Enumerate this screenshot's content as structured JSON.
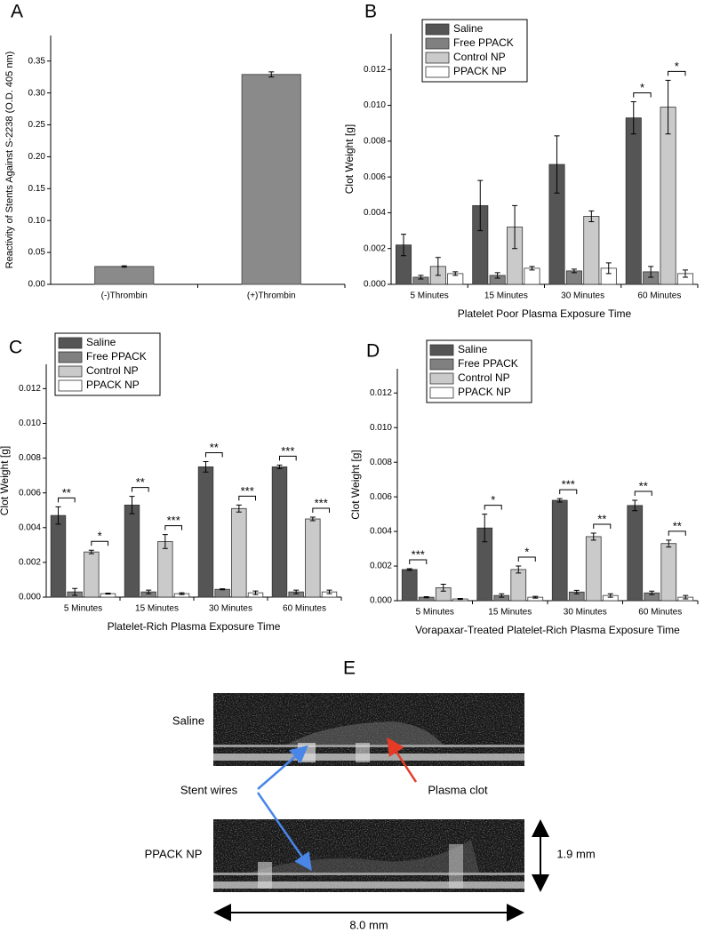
{
  "chart_data": [
    {
      "type": "bar",
      "panel_label": "A",
      "categories": [
        "(-)Thrombin",
        "(+)Thrombin"
      ],
      "values": [
        0.028,
        0.329
      ],
      "errors": [
        0.001,
        0.004
      ],
      "color": "#8a8a8a",
      "ylabel": "Reactivity of Stents Against S-2238 (O.D. 405 nm)",
      "ylim": [
        0,
        0.39
      ],
      "yticks": [
        {
          "value": 0,
          "label": "0.00"
        },
        0.05,
        {
          "value": 0.1,
          "label": "0.10"
        },
        0.15,
        {
          "value": 0.2,
          "label": "0.20"
        },
        0.25,
        {
          "value": 0.3,
          "label": "0.30"
        },
        0.35
      ]
    },
    {
      "type": "bar",
      "panel_label": "B",
      "legend": "top-left",
      "categories": [
        "5 Minutes",
        "15 Minutes",
        "30 Minutes",
        "60 Minutes"
      ],
      "xlabel": "Platelet Poor Plasma Exposure Time",
      "ylabel": "Clot Weight [g]",
      "ylim": [
        0,
        0.014
      ],
      "yticks": [
        {
          "value": 0,
          "label": "0.000"
        },
        0.002,
        0.004,
        0.006,
        0.008,
        {
          "value": 0.01,
          "label": "0.010"
        },
        0.012
      ],
      "series": [
        {
          "name": "Saline",
          "color": "#555555",
          "values": [
            0.0022,
            0.0044,
            0.0067,
            0.0093
          ],
          "errors": [
            0.0006,
            0.0014,
            0.0016,
            0.0009
          ],
          "significance": [
            null,
            null,
            null,
            "*"
          ]
        },
        {
          "name": "Free PPACK",
          "color": "#808080",
          "values": [
            0.0004,
            0.0005,
            0.00075,
            0.0007
          ],
          "errors": [
            0.0001,
            0.00015,
            0.0001,
            0.0003
          ]
        },
        {
          "name": "Control NP",
          "color": "#cacaca",
          "values": [
            0.001,
            0.0032,
            0.0038,
            0.0099
          ],
          "errors": [
            0.0005,
            0.0012,
            0.0003,
            0.0015
          ],
          "significance": [
            null,
            null,
            null,
            "*"
          ]
        },
        {
          "name": "PPACK NP",
          "color": "#ffffff",
          "values": [
            0.0006,
            0.0009,
            0.0009,
            0.0006
          ],
          "errors": [
            0.0001,
            0.0001,
            0.0003,
            0.0002
          ]
        }
      ]
    },
    {
      "type": "bar",
      "panel_label": "C",
      "legend": "top-left",
      "categories": [
        "5 Minutes",
        "15 Minutes",
        "30 Minutes",
        "60 Minutes"
      ],
      "xlabel": "Platelet-Rich Plasma Exposure Time",
      "ylabel": "Clot Weight [g]",
      "ylim": [
        0,
        0.0134
      ],
      "yticks": [
        {
          "value": 0,
          "label": "0.000"
        },
        0.002,
        0.004,
        0.006,
        0.008,
        {
          "value": 0.01,
          "label": "0.010"
        },
        0.012
      ],
      "series": [
        {
          "name": "Saline",
          "color": "#555555",
          "values": [
            0.0047,
            0.0053,
            0.0075,
            0.0075
          ],
          "errors": [
            0.0005,
            0.0005,
            0.0003,
            0.0001
          ],
          "significance": [
            "**",
            "**",
            "**",
            "***"
          ]
        },
        {
          "name": "Free PPACK",
          "color": "#808080",
          "values": [
            0.0003,
            0.0003,
            0.00045,
            0.0003
          ],
          "errors": [
            0.0002,
            0.0001,
            3e-05,
            0.0001
          ]
        },
        {
          "name": "Control NP",
          "color": "#cacaca",
          "values": [
            0.0026,
            0.0032,
            0.0051,
            0.0045
          ],
          "errors": [
            0.0001,
            0.0004,
            0.0002,
            0.0001
          ],
          "significance": [
            "*",
            "***",
            "***",
            "***"
          ]
        },
        {
          "name": "PPACK NP",
          "color": "#ffffff",
          "values": [
            0.0002,
            0.0002,
            0.00025,
            0.0003
          ],
          "errors": [
            3e-05,
            5e-05,
            0.0001,
            0.0001
          ]
        }
      ]
    },
    {
      "type": "bar",
      "panel_label": "D",
      "legend": "top-left",
      "categories": [
        "5 Minutes",
        "15 Minutes",
        "30 Minutes",
        "60 Minutes"
      ],
      "xlabel": "Vorapaxar-Treated Platelet-Rich Plasma Exposure Time",
      "ylabel": "Clot Weight [g]",
      "ylim": [
        0,
        0.0134
      ],
      "yticks": [
        {
          "value": 0,
          "label": "0.000"
        },
        0.002,
        0.004,
        0.006,
        0.008,
        {
          "value": 0.01,
          "label": "0.010"
        },
        0.012
      ],
      "series": [
        {
          "name": "Saline",
          "color": "#555555",
          "values": [
            0.0018,
            0.0042,
            0.0058,
            0.0055
          ],
          "errors": [
            5e-05,
            0.0008,
            0.0001,
            0.0003
          ],
          "significance": [
            "***",
            "*",
            "***",
            "**"
          ]
        },
        {
          "name": "Free PPACK",
          "color": "#808080",
          "values": [
            0.0002,
            0.0003,
            0.0005,
            0.00045
          ],
          "errors": [
            3e-05,
            0.0001,
            0.0001,
            0.0001
          ]
        },
        {
          "name": "Control NP",
          "color": "#cacaca",
          "values": [
            0.00075,
            0.0018,
            0.0037,
            0.0033
          ],
          "errors": [
            0.0002,
            0.0002,
            0.0002,
            0.0002
          ],
          "significance": [
            null,
            "*",
            "**",
            "**"
          ]
        },
        {
          "name": "PPACK NP",
          "color": "#ffffff",
          "values": [
            0.0001,
            0.0002,
            0.0003,
            0.0002
          ],
          "errors": [
            3e-05,
            5e-05,
            0.0001,
            0.0001
          ]
        }
      ]
    }
  ],
  "panel_e": {
    "label": "E",
    "rows": [
      "Saline",
      "PPACK NP"
    ],
    "arrows": [
      "Stent wires",
      "Plasma clot"
    ],
    "scale_bars": [
      "1.9 mm",
      "8.0 mm"
    ]
  }
}
